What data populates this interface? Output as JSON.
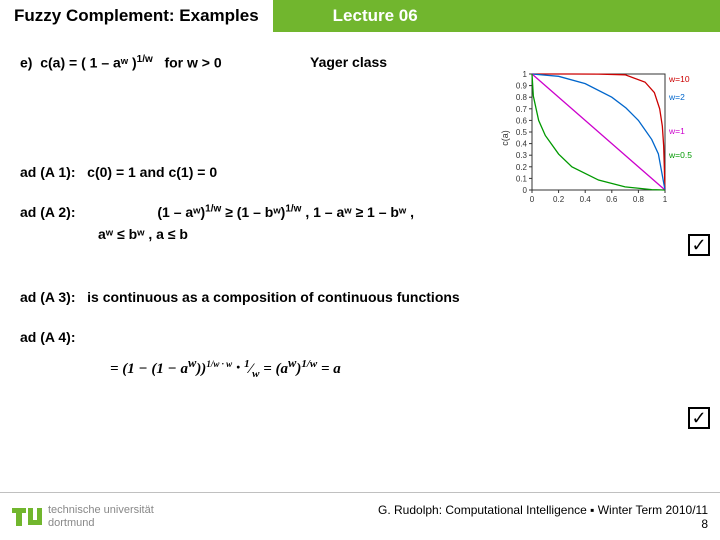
{
  "header": {
    "title_left": "Fuzzy Complement: Examples",
    "title_right": "Lecture 06",
    "bg_color": "#71b62e"
  },
  "item_label": "e)",
  "formula_main": "c(a) = ( 1 – aʷ )",
  "formula_exp": "1/w",
  "formula_cond": "for w > 0",
  "yager_label": "Yager class",
  "chart": {
    "type": "line",
    "xlim": [
      0,
      1
    ],
    "ylim": [
      0,
      1
    ],
    "xticks": [
      0,
      0.2,
      0.4,
      0.6,
      0.8,
      1
    ],
    "yticks": [
      0,
      0.1,
      0.2,
      0.3,
      0.4,
      0.5,
      0.6,
      0.7,
      0.8,
      0.9,
      1
    ],
    "ylabel": "c(a)",
    "series": [
      {
        "w": 10,
        "color": "#cc0000",
        "label": "w=10",
        "points": [
          [
            0,
            1
          ],
          [
            0.1,
            1
          ],
          [
            0.3,
            1
          ],
          [
            0.5,
            0.999
          ],
          [
            0.7,
            0.993
          ],
          [
            0.85,
            0.93
          ],
          [
            0.92,
            0.84
          ],
          [
            0.96,
            0.7
          ],
          [
            0.98,
            0.55
          ],
          [
            0.99,
            0.38
          ],
          [
            1,
            0
          ]
        ]
      },
      {
        "w": 2,
        "color": "#0066cc",
        "label": "w=2",
        "points": [
          [
            0,
            1
          ],
          [
            0.2,
            0.98
          ],
          [
            0.4,
            0.917
          ],
          [
            0.6,
            0.8
          ],
          [
            0.707,
            0.707
          ],
          [
            0.8,
            0.6
          ],
          [
            0.9,
            0.436
          ],
          [
            0.95,
            0.312
          ],
          [
            1,
            0
          ]
        ]
      },
      {
        "w": 1,
        "color": "#cc00cc",
        "label": "w=1",
        "points": [
          [
            0,
            1
          ],
          [
            1,
            0
          ]
        ]
      },
      {
        "w": 0.5,
        "color": "#009900",
        "label": "w=0.5",
        "points": [
          [
            0,
            1
          ],
          [
            0.01,
            0.81
          ],
          [
            0.05,
            0.6
          ],
          [
            0.1,
            0.47
          ],
          [
            0.2,
            0.31
          ],
          [
            0.3,
            0.2
          ],
          [
            0.5,
            0.086
          ],
          [
            0.7,
            0.027
          ],
          [
            0.9,
            0.003
          ],
          [
            1,
            0
          ]
        ]
      }
    ],
    "axis_color": "#333333",
    "tick_fontsize": 8,
    "label_color": "#333333"
  },
  "proofs": {
    "a1_label": "ad (A 1):",
    "a1_text": "c(0) = 1 and  c(1) = 0",
    "a2_label": "ad (A 2):",
    "a2_line1_a": "(1 – aʷ)",
    "a2_exp1": "1/w",
    "a2_line1_b": " ≥ (1 – bʷ)",
    "a2_exp2": "1/w",
    "a2_line1_c": "  ,  1 – aʷ ≥ 1 – bʷ  ,",
    "a2_line2": "aʷ ≤ bʷ   ,  a ≤ b",
    "a3_label": "ad (A 3):",
    "a3_text": "is continuous as a composition of continuous functions",
    "a4_label": "ad (A 4):",
    "a4_formula": "= (1 − (1 − aʷ))^(1/w · w) · 1/w = (aʷ)^(1/w) = a"
  },
  "checkmark": "☑",
  "footer": {
    "uni_line1": "technische universität",
    "uni_line2": "dortmund",
    "credit": "G. Rudolph: Computational Intelligence ▪ Winter Term 2010/11",
    "page": "8",
    "logo_color": "#71b62e"
  }
}
